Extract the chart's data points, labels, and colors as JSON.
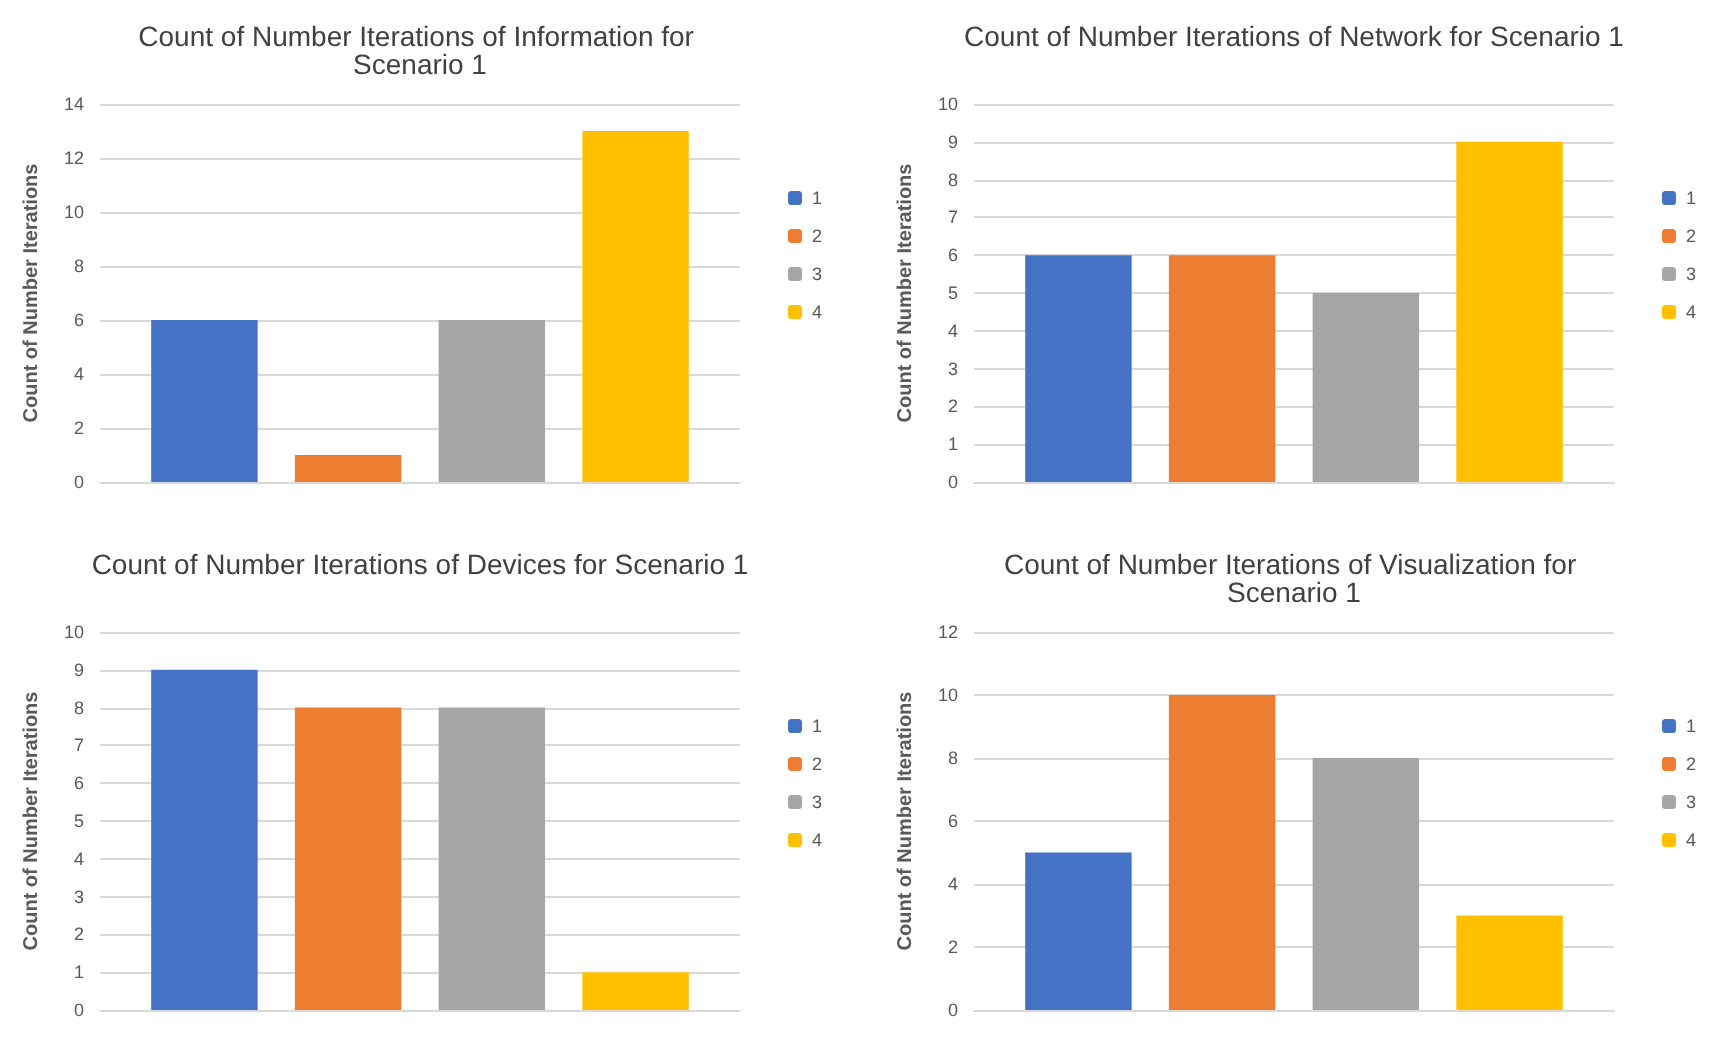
{
  "chart_data": [
    {
      "type": "bar",
      "title": "Count of Number Iterations of Information for Scenario 1",
      "ylabel": "Count of Number Iterations",
      "categories": [
        null
      ],
      "series": [
        {
          "name": "1",
          "color": "#4472c4",
          "values": [
            6
          ]
        },
        {
          "name": "2",
          "color": "#ed7d31",
          "values": [
            1
          ]
        },
        {
          "name": "3",
          "color": "#a5a5a5",
          "values": [
            6
          ]
        },
        {
          "name": "4",
          "color": "#ffc000",
          "values": [
            13
          ]
        }
      ],
      "ylim": [
        0,
        14
      ],
      "yticks": [
        0,
        2,
        4,
        6,
        8,
        10,
        12,
        14
      ],
      "grid": "y",
      "legend": "right"
    },
    {
      "type": "bar",
      "title": "Count of Number Iterations of Network for Scenario 1",
      "ylabel": "Count of Number Iterations",
      "categories": [
        null
      ],
      "series": [
        {
          "name": "1",
          "color": "#4472c4",
          "values": [
            6
          ]
        },
        {
          "name": "2",
          "color": "#ed7d31",
          "values": [
            6
          ]
        },
        {
          "name": "3",
          "color": "#a5a5a5",
          "values": [
            5
          ]
        },
        {
          "name": "4",
          "color": "#ffc000",
          "values": [
            9
          ]
        }
      ],
      "ylim": [
        0,
        10
      ],
      "yticks": [
        0,
        1,
        2,
        3,
        4,
        5,
        6,
        7,
        8,
        9,
        10
      ],
      "grid": "y",
      "legend": "right"
    },
    {
      "type": "bar",
      "title": "Count of Number Iterations of Devices for Scenario 1",
      "ylabel": "Count of Number Iterations",
      "categories": [
        null
      ],
      "series": [
        {
          "name": "1",
          "color": "#4472c4",
          "values": [
            9
          ]
        },
        {
          "name": "2",
          "color": "#ed7d31",
          "values": [
            8
          ]
        },
        {
          "name": "3",
          "color": "#a5a5a5",
          "values": [
            8
          ]
        },
        {
          "name": "4",
          "color": "#ffc000",
          "values": [
            1
          ]
        }
      ],
      "ylim": [
        0,
        10
      ],
      "yticks": [
        0,
        1,
        2,
        3,
        4,
        5,
        6,
        7,
        8,
        9,
        10
      ],
      "grid": "y",
      "legend": "right"
    },
    {
      "type": "bar",
      "title": "Count of Number Iterations of Visualization for Scenario 1",
      "ylabel": "Count of Number Iterations",
      "categories": [
        null
      ],
      "series": [
        {
          "name": "1",
          "color": "#4472c4",
          "values": [
            5
          ]
        },
        {
          "name": "2",
          "color": "#ed7d31",
          "values": [
            10
          ]
        },
        {
          "name": "3",
          "color": "#a5a5a5",
          "values": [
            8
          ]
        },
        {
          "name": "4",
          "color": "#ffc000",
          "values": [
            3
          ]
        }
      ],
      "ylim": [
        0,
        12
      ],
      "yticks": [
        0,
        2,
        4,
        6,
        8,
        10,
        12
      ],
      "grid": "y",
      "legend": "right"
    }
  ]
}
